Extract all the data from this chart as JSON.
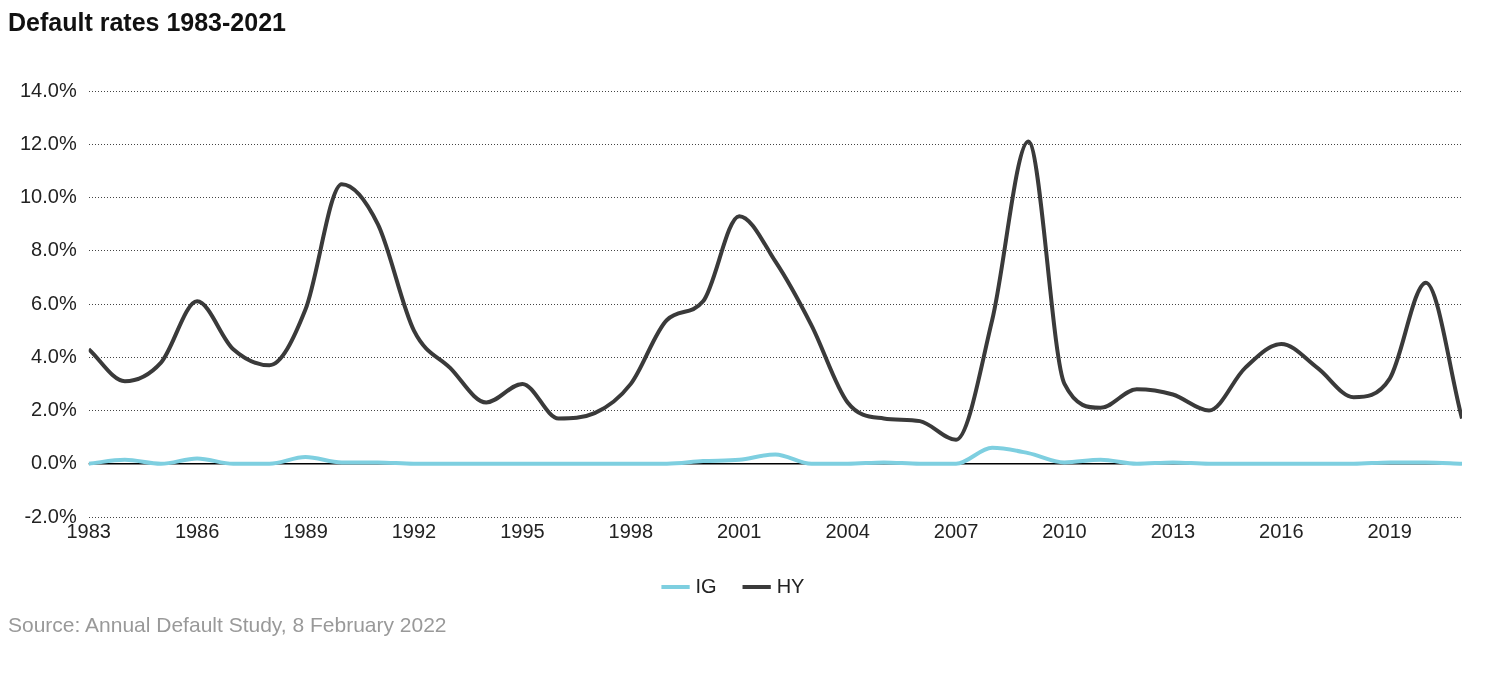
{
  "chart_data": {
    "type": "line",
    "title": "Default rates 1983-2021",
    "x": [
      1983,
      1984,
      1985,
      1986,
      1987,
      1988,
      1989,
      1990,
      1991,
      1992,
      1993,
      1994,
      1995,
      1996,
      1997,
      1998,
      1999,
      2000,
      2001,
      2002,
      2003,
      2004,
      2005,
      2006,
      2007,
      2008,
      2009,
      2010,
      2011,
      2012,
      2013,
      2014,
      2015,
      2016,
      2017,
      2018,
      2019,
      2020,
      2021
    ],
    "series": [
      {
        "name": "IG",
        "color": "#7ecfe0",
        "values": [
          0,
          0.15,
          0,
          0.2,
          0,
          0,
          0.25,
          0.05,
          0.05,
          0,
          0,
          0,
          0,
          0,
          0,
          0,
          0,
          0.1,
          0.15,
          0.35,
          0,
          0,
          0.05,
          0,
          0,
          0.6,
          0.4,
          0.05,
          0.15,
          0,
          0.05,
          0,
          0,
          0,
          0,
          0,
          0.05,
          0.05,
          0
        ]
      },
      {
        "name": "HY",
        "color": "#3a3a3a",
        "values": [
          4.3,
          3.1,
          3.8,
          6.1,
          4.3,
          3.7,
          5.8,
          10.5,
          9.0,
          5.0,
          3.6,
          2.3,
          3.0,
          1.7,
          1.9,
          3.0,
          5.4,
          6.1,
          9.3,
          7.6,
          5.2,
          2.3,
          1.7,
          1.6,
          0.9,
          5.4,
          12.1,
          3.0,
          2.1,
          2.8,
          2.6,
          2.0,
          3.6,
          4.5,
          3.6,
          2.5,
          3.2,
          6.8,
          1.7
        ]
      }
    ],
    "xlim": [
      1983,
      2021
    ],
    "xticks": [
      1983,
      1986,
      1989,
      1992,
      1995,
      1998,
      2001,
      2004,
      2007,
      2010,
      2013,
      2016,
      2019
    ],
    "ylim": [
      -2,
      14
    ],
    "yticks": [
      {
        "value": -2,
        "label": "-2.0%"
      },
      {
        "value": 0,
        "label": "0.0%"
      },
      {
        "value": 2,
        "label": "2.0%"
      },
      {
        "value": 4,
        "label": "4.0%"
      },
      {
        "value": 6,
        "label": "6.0%"
      },
      {
        "value": 8,
        "label": "8.0%"
      },
      {
        "value": 10,
        "label": "10.0%"
      },
      {
        "value": 12,
        "label": "12.0%"
      },
      {
        "value": 14,
        "label": "14.0%"
      }
    ],
    "grid": "y",
    "legend": "bottom",
    "marker": "none",
    "line_style": "solid",
    "ref_lines": [
      {
        "axis": "y",
        "value": 0,
        "color": "#000000"
      }
    ],
    "annotations": [
      "Source: Annual Default Study, 8 February 2022"
    ]
  }
}
